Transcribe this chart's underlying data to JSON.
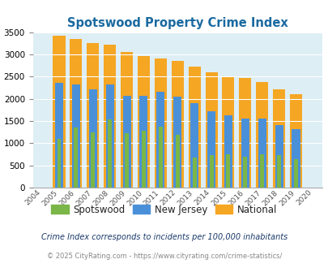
{
  "title": "Spotswood Property Crime Index",
  "years": [
    "2004",
    "2005",
    "2006",
    "2007",
    "2008",
    "2009",
    "2010",
    "2011",
    "2012",
    "2013",
    "2014",
    "2015",
    "2016",
    "2017",
    "2018",
    "2019",
    "2020"
  ],
  "spotswood": [
    0,
    1100,
    1360,
    1250,
    1530,
    1220,
    1280,
    1370,
    1190,
    670,
    730,
    750,
    700,
    750,
    730,
    640,
    0
  ],
  "new_jersey": [
    0,
    2360,
    2320,
    2210,
    2330,
    2060,
    2070,
    2160,
    2050,
    1900,
    1720,
    1620,
    1560,
    1560,
    1410,
    1310,
    0
  ],
  "national": [
    0,
    3420,
    3340,
    3260,
    3210,
    3050,
    2960,
    2900,
    2860,
    2730,
    2600,
    2500,
    2470,
    2370,
    2210,
    2110,
    0
  ],
  "spotswood_color": "#7ab648",
  "nj_color": "#4a90d9",
  "national_color": "#f5a623",
  "plot_bg_color": "#deeef5",
  "title_color": "#1a6aa0",
  "ylim": [
    0,
    3500
  ],
  "footer_text": "Crime Index corresponds to incidents per 100,000 inhabitants",
  "copyright_text": "© 2025 CityRating.com - https://www.cityrating.com/crime-statistics/",
  "legend_labels": [
    "Spotswood",
    "New Jersey",
    "National"
  ]
}
